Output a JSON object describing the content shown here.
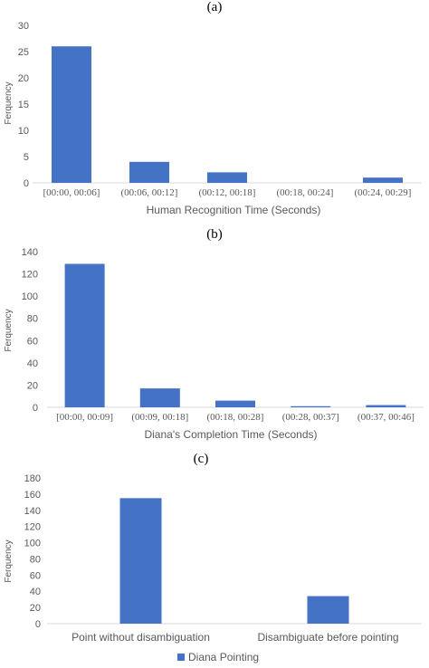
{
  "chart_data": [
    {
      "panel_label": "(a)",
      "type": "bar",
      "categories": [
        "[00:00, 00:06]",
        "(00:06, 00:12]",
        "(00:12, 00:18]",
        "(00:18, 00:24]",
        "(00:24, 00:29]"
      ],
      "values": [
        26,
        4,
        2,
        0,
        1
      ],
      "xlabel": "Human Recognition Time (Seconds)",
      "ylabel": "Ferquency",
      "ylim": [
        0,
        30
      ],
      "yticks": [
        0,
        5,
        10,
        15,
        20,
        25,
        30
      ],
      "color": "#4472C4",
      "grid": false
    },
    {
      "panel_label": "(b)",
      "type": "bar",
      "categories": [
        "[00:00, 00:09]",
        "(00:09, 00:18]",
        "(00:18, 00:28]",
        "(00:28, 00:37]",
        "(00:37, 00:46]"
      ],
      "values": [
        129,
        17,
        6,
        1,
        2
      ],
      "xlabel": "Diana's Completion Time (Seconds)",
      "ylabel": "Ferquency",
      "ylim": [
        0,
        140
      ],
      "yticks": [
        0,
        20,
        40,
        60,
        80,
        100,
        120,
        140
      ],
      "color": "#4472C4",
      "grid": false
    },
    {
      "panel_label": "(c)",
      "type": "bar",
      "categories": [
        "Point without disambiguation",
        "Disambiguate before pointing"
      ],
      "series": [
        {
          "name": "Diana Pointing",
          "values": [
            155,
            34
          ]
        }
      ],
      "ylabel": "Ferquency",
      "ylim": [
        0,
        180
      ],
      "yticks": [
        0,
        20,
        40,
        60,
        80,
        100,
        120,
        140,
        160,
        180
      ],
      "color": "#4472C4",
      "legend": "bottom",
      "grid": false
    }
  ]
}
